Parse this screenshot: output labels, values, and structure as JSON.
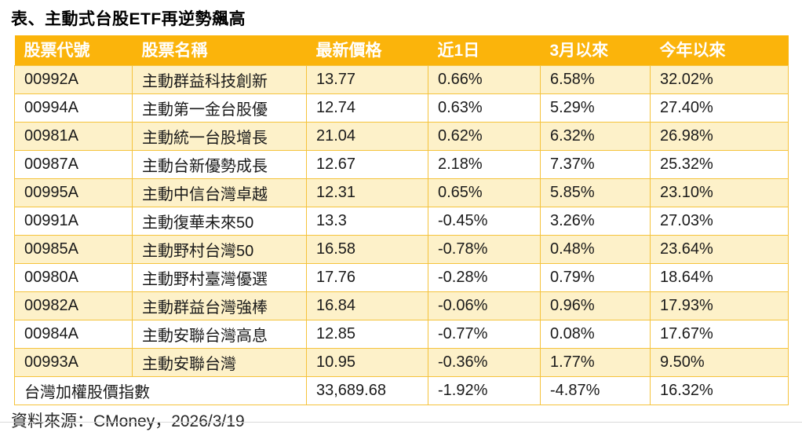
{
  "colors": {
    "header_bg": "#FBB40B",
    "header_text": "#FFFFFF",
    "row_alt_bg": "#FDF1C9",
    "row_bg": "#FFFFFF",
    "border": "#F5C33C",
    "text": "#1A1A1A",
    "source_text": "#262626"
  },
  "chart_data": {
    "type": "table",
    "title": "表、主動式台股ETF再逆勢飆高",
    "columns": [
      "股票代號",
      "股票名稱",
      "最新價格",
      "近1日",
      "3月以來",
      "今年以來"
    ],
    "rows": [
      {
        "code": "00992A",
        "name": "主動群益科技創新",
        "price": "13.77",
        "d1": "0.66%",
        "m3": "6.58%",
        "ytd": "32.02%"
      },
      {
        "code": "00994A",
        "name": "主動第一金台股優",
        "price": "12.74",
        "d1": "0.63%",
        "m3": "5.29%",
        "ytd": "27.40%"
      },
      {
        "code": "00981A",
        "name": "主動統一台股增長",
        "price": "21.04",
        "d1": "0.62%",
        "m3": "6.32%",
        "ytd": "26.98%"
      },
      {
        "code": "00987A",
        "name": "主動台新優勢成長",
        "price": "12.67",
        "d1": "2.18%",
        "m3": "7.37%",
        "ytd": "25.32%"
      },
      {
        "code": "00995A",
        "name": "主動中信台灣卓越",
        "price": "12.31",
        "d1": "0.65%",
        "m3": "5.85%",
        "ytd": "23.10%"
      },
      {
        "code": "00991A",
        "name": "主動復華未來50",
        "price": "13.3",
        "d1": "-0.45%",
        "m3": "3.26%",
        "ytd": "27.03%"
      },
      {
        "code": "00985A",
        "name": "主動野村台灣50",
        "price": "16.58",
        "d1": "-0.78%",
        "m3": "0.48%",
        "ytd": "23.64%"
      },
      {
        "code": "00980A",
        "name": "主動野村臺灣優選",
        "price": "17.76",
        "d1": "-0.28%",
        "m3": "0.79%",
        "ytd": "18.64%"
      },
      {
        "code": "00982A",
        "name": "主動群益台灣強棒",
        "price": "16.84",
        "d1": "-0.06%",
        "m3": "0.96%",
        "ytd": "17.93%"
      },
      {
        "code": "00984A",
        "name": "主動安聯台灣高息",
        "price": "12.85",
        "d1": "-0.77%",
        "m3": "0.08%",
        "ytd": "17.67%"
      },
      {
        "code": "00993A",
        "name": "主動安聯台灣",
        "price": "10.95",
        "d1": "-0.36%",
        "m3": "1.77%",
        "ytd": "9.50%"
      }
    ],
    "summary_row": {
      "label": "台灣加權股價指數",
      "price": "33,689.68",
      "d1": "-1.92%",
      "m3": "-4.87%",
      "ytd": "16.32%"
    },
    "source": "資料來源：CMoney，2026/3/19"
  }
}
